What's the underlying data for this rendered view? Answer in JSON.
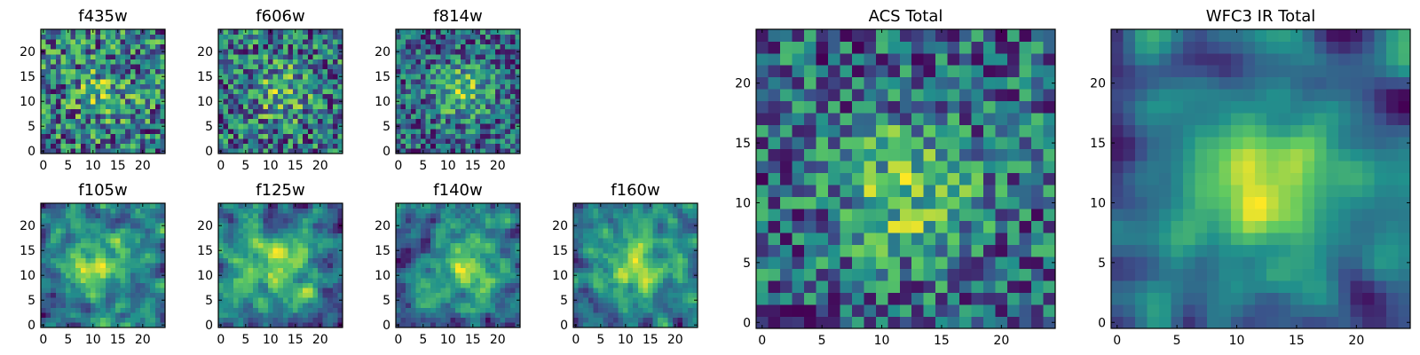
{
  "colormap": {
    "name": "viridis",
    "stops": [
      "#440154",
      "#3b528b",
      "#21918c",
      "#5ec962",
      "#fde725"
    ]
  },
  "chart_data": [
    {
      "type": "heatmap",
      "title": "f435w",
      "grid": [
        25,
        25
      ],
      "seed": 11,
      "blob": [
        12,
        12
      ],
      "blob_strength": 0.25,
      "blob_width": 4,
      "smooth": 0,
      "xticks": [
        "0",
        "5",
        "10",
        "15",
        "20"
      ],
      "yticks": [
        "0",
        "5",
        "10",
        "15",
        "20"
      ],
      "xlim": [
        0,
        25
      ],
      "ylim": [
        0,
        25
      ]
    },
    {
      "type": "heatmap",
      "title": "f606w",
      "grid": [
        25,
        25
      ],
      "seed": 23,
      "blob": [
        12,
        12
      ],
      "blob_strength": 0.3,
      "blob_width": 4,
      "smooth": 0,
      "xticks": [
        "0",
        "5",
        "10",
        "15",
        "20"
      ],
      "yticks": [
        "0",
        "5",
        "10",
        "15",
        "20"
      ],
      "xlim": [
        0,
        25
      ],
      "ylim": [
        0,
        25
      ]
    },
    {
      "type": "heatmap",
      "title": "f814w",
      "grid": [
        25,
        25
      ],
      "seed": 37,
      "blob": [
        13,
        12
      ],
      "blob_strength": 0.45,
      "blob_width": 4,
      "smooth": 0,
      "xticks": [
        "0",
        "5",
        "10",
        "15",
        "20"
      ],
      "yticks": [
        "0",
        "5",
        "10",
        "15",
        "20"
      ],
      "xlim": [
        0,
        25
      ],
      "ylim": [
        0,
        25
      ]
    },
    {
      "type": "heatmap",
      "title": "f105w",
      "grid": [
        25,
        25
      ],
      "seed": 41,
      "blob": [
        11,
        12
      ],
      "blob_strength": 0.45,
      "blob_width": 5,
      "smooth": 1,
      "xticks": [
        "0",
        "5",
        "10",
        "15",
        "20"
      ],
      "yticks": [
        "0",
        "5",
        "10",
        "15",
        "20"
      ],
      "xlim": [
        0,
        25
      ],
      "ylim": [
        0,
        25
      ]
    },
    {
      "type": "heatmap",
      "title": "f125w",
      "grid": [
        25,
        25
      ],
      "seed": 53,
      "blob": [
        12,
        12
      ],
      "blob_strength": 0.4,
      "blob_width": 5,
      "smooth": 1,
      "xticks": [
        "0",
        "5",
        "10",
        "15",
        "20"
      ],
      "yticks": [
        "0",
        "5",
        "10",
        "15",
        "20"
      ],
      "xlim": [
        0,
        25
      ],
      "ylim": [
        0,
        25
      ]
    },
    {
      "type": "heatmap",
      "title": "f140w",
      "grid": [
        25,
        25
      ],
      "seed": 67,
      "blob": [
        14,
        12
      ],
      "blob_strength": 0.45,
      "blob_width": 5,
      "smooth": 1,
      "xticks": [
        "0",
        "5",
        "10",
        "15",
        "20"
      ],
      "yticks": [
        "0",
        "5",
        "10",
        "15",
        "20"
      ],
      "xlim": [
        0,
        25
      ],
      "ylim": [
        0,
        25
      ]
    },
    {
      "type": "heatmap",
      "title": "f160w",
      "grid": [
        25,
        25
      ],
      "seed": 79,
      "blob": [
        12,
        12
      ],
      "blob_strength": 0.5,
      "blob_width": 5,
      "smooth": 1,
      "xticks": [
        "0",
        "5",
        "10",
        "15",
        "20"
      ],
      "yticks": [
        "0",
        "5",
        "10",
        "15",
        "20"
      ],
      "xlim": [
        0,
        25
      ],
      "ylim": [
        0,
        25
      ]
    },
    {
      "type": "heatmap",
      "title": "ACS Total",
      "grid": [
        25,
        25
      ],
      "seed": 97,
      "blob": [
        12,
        11
      ],
      "blob_strength": 0.45,
      "blob_width": 4,
      "smooth": 0,
      "xticks": [
        "0",
        "5",
        "10",
        "15",
        "20"
      ],
      "yticks": [
        "0",
        "5",
        "10",
        "15",
        "20"
      ],
      "xlim": [
        0,
        25
      ],
      "ylim": [
        0,
        25
      ]
    },
    {
      "type": "heatmap",
      "title": "WFC3 IR Total",
      "grid": [
        25,
        25
      ],
      "seed": 113,
      "blob": [
        12,
        11
      ],
      "blob_strength": 0.6,
      "blob_width": 5,
      "smooth": 2,
      "xticks": [
        "0",
        "5",
        "10",
        "15",
        "20"
      ],
      "yticks": [
        "0",
        "5",
        "10",
        "15",
        "20"
      ],
      "xlim": [
        0,
        25
      ],
      "ylim": [
        0,
        25
      ]
    }
  ]
}
